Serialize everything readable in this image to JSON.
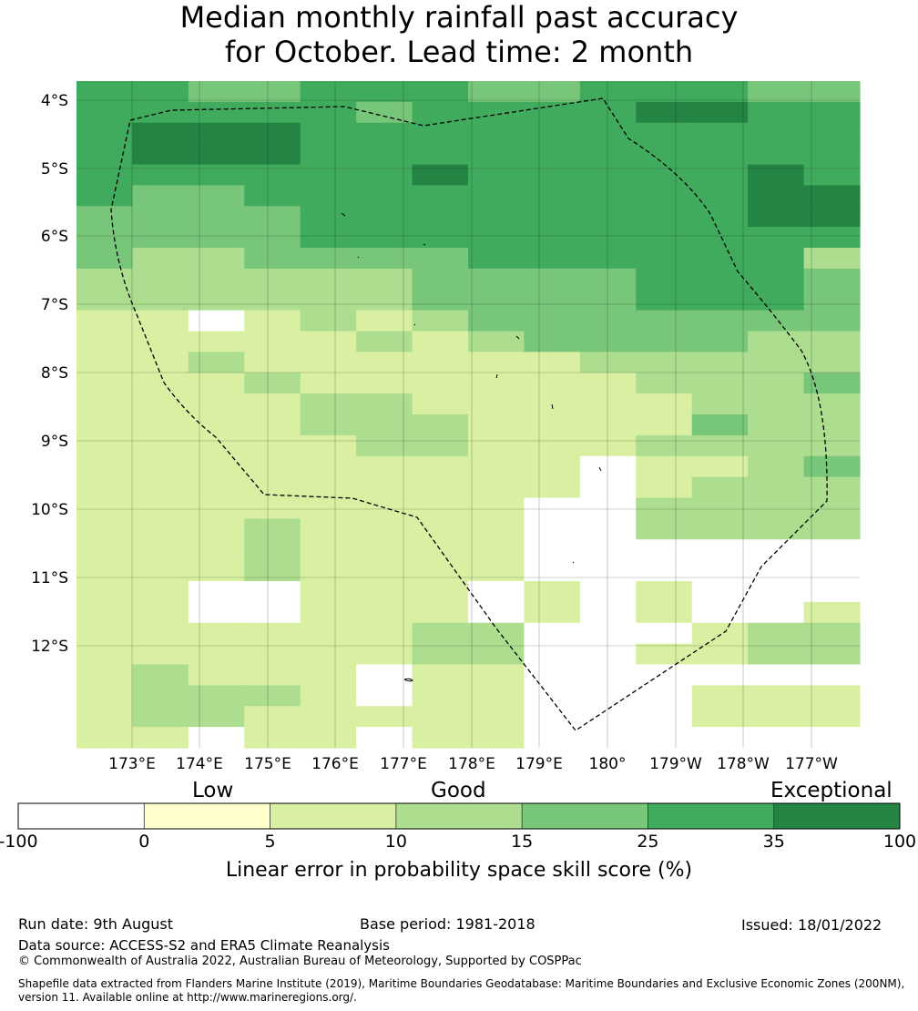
{
  "title": {
    "line1": "Median monthly rainfall past accuracy",
    "line2": "for October. Lead time: 2 month"
  },
  "map": {
    "lat_labels": [
      "4°S",
      "5°S",
      "6°S",
      "7°S",
      "8°S",
      "9°S",
      "10°S",
      "11°S",
      "12°S"
    ],
    "lon_labels": [
      "173°E",
      "174°E",
      "175°E",
      "176°E",
      "177°E",
      "178°E",
      "179°E",
      "180°",
      "179°W",
      "178°W",
      "177°W"
    ],
    "eez_boundary": "dashed black line (Tuvalu EEZ)",
    "grid_values": [
      [
        25,
        25,
        15,
        15,
        25,
        25,
        25,
        15,
        15,
        25,
        25,
        25,
        15,
        15
      ],
      [
        25,
        25,
        25,
        25,
        25,
        15,
        25,
        25,
        25,
        25,
        35,
        35,
        25,
        25
      ],
      [
        25,
        35,
        35,
        35,
        25,
        25,
        25,
        25,
        25,
        25,
        25,
        25,
        25,
        25
      ],
      [
        25,
        35,
        35,
        35,
        25,
        25,
        25,
        25,
        25,
        25,
        25,
        25,
        25,
        25
      ],
      [
        25,
        25,
        25,
        25,
        25,
        25,
        35,
        25,
        25,
        25,
        25,
        25,
        35,
        25
      ],
      [
        25,
        15,
        15,
        25,
        25,
        25,
        25,
        25,
        25,
        25,
        25,
        25,
        35,
        35
      ],
      [
        15,
        15,
        15,
        15,
        25,
        25,
        25,
        25,
        25,
        25,
        25,
        25,
        35,
        35
      ],
      [
        15,
        15,
        15,
        15,
        25,
        25,
        25,
        25,
        25,
        25,
        25,
        25,
        25,
        25
      ],
      [
        15,
        10,
        10,
        15,
        15,
        15,
        15,
        25,
        25,
        25,
        25,
        25,
        25,
        10
      ],
      [
        10,
        10,
        10,
        10,
        10,
        10,
        15,
        15,
        15,
        15,
        25,
        25,
        25,
        15
      ],
      [
        10,
        10,
        10,
        10,
        10,
        10,
        15,
        15,
        15,
        15,
        25,
        25,
        25,
        15
      ],
      [
        5,
        5,
        -1,
        5,
        10,
        5,
        10,
        15,
        15,
        15,
        15,
        15,
        15,
        15
      ],
      [
        5,
        5,
        5,
        5,
        5,
        10,
        5,
        10,
        15,
        15,
        15,
        15,
        10,
        10
      ],
      [
        5,
        5,
        10,
        5,
        5,
        5,
        5,
        5,
        5,
        10,
        10,
        10,
        10,
        10
      ],
      [
        5,
        5,
        5,
        10,
        5,
        5,
        5,
        5,
        5,
        5,
        10,
        10,
        10,
        15
      ],
      [
        5,
        5,
        5,
        5,
        10,
        10,
        5,
        5,
        5,
        5,
        5,
        10,
        10,
        10
      ],
      [
        5,
        5,
        5,
        5,
        10,
        10,
        10,
        5,
        5,
        5,
        5,
        15,
        10,
        10
      ],
      [
        5,
        5,
        5,
        5,
        5,
        10,
        10,
        5,
        5,
        5,
        10,
        10,
        10,
        10
      ],
      [
        5,
        5,
        5,
        5,
        5,
        5,
        5,
        5,
        5,
        -1,
        5,
        5,
        10,
        15
      ],
      [
        5,
        5,
        5,
        5,
        5,
        5,
        5,
        5,
        5,
        -1,
        5,
        10,
        10,
        10
      ],
      [
        5,
        5,
        5,
        5,
        5,
        5,
        5,
        5,
        -1,
        -1,
        10,
        10,
        10,
        10
      ],
      [
        5,
        5,
        5,
        10,
        5,
        5,
        5,
        5,
        -1,
        -1,
        10,
        10,
        10,
        10
      ],
      [
        5,
        5,
        5,
        10,
        5,
        5,
        5,
        5,
        -1,
        -1,
        -1,
        -1,
        -1,
        -1
      ],
      [
        5,
        5,
        5,
        10,
        5,
        5,
        5,
        5,
        -1,
        -1,
        -1,
        -1,
        -1,
        -1
      ],
      [
        5,
        5,
        -1,
        -1,
        5,
        5,
        5,
        -1,
        5,
        -1,
        5,
        -1,
        -1,
        -1
      ],
      [
        5,
        5,
        -1,
        -1,
        5,
        5,
        5,
        -1,
        5,
        -1,
        5,
        -1,
        -1,
        5
      ],
      [
        5,
        5,
        5,
        5,
        5,
        5,
        10,
        10,
        -1,
        -1,
        -1,
        5,
        10,
        10
      ],
      [
        5,
        5,
        5,
        5,
        5,
        5,
        10,
        10,
        -1,
        -1,
        5,
        5,
        10,
        10
      ],
      [
        5,
        10,
        5,
        5,
        5,
        -1,
        5,
        5,
        -1,
        -1,
        -1,
        -1,
        -1,
        -1
      ],
      [
        5,
        10,
        10,
        10,
        5,
        -1,
        5,
        5,
        -1,
        -1,
        -1,
        5,
        5,
        5
      ],
      [
        5,
        10,
        10,
        5,
        5,
        5,
        5,
        5,
        -1,
        -1,
        -1,
        5,
        5,
        5
      ],
      [
        5,
        5,
        -1,
        5,
        5,
        -1,
        5,
        5,
        -1,
        -1,
        -1,
        -1,
        -1,
        -1
      ]
    ]
  },
  "colorbar": {
    "category_low": "Low",
    "category_good": "Good",
    "category_exceptional": "Exceptional",
    "ticks": [
      "-100",
      "0",
      "5",
      "10",
      "15",
      "25",
      "35",
      "100"
    ],
    "colors": [
      "#ffffff",
      "#ffffcc",
      "#d9f0a3",
      "#addd8e",
      "#78c679",
      "#41ab5d",
      "#238443"
    ],
    "caption": "Linear error in probability space skill score (%)"
  },
  "footer": {
    "run_date": "Run date: 9th August",
    "base_period": "Base period: 1981-2018",
    "issued": "Issued: 18/01/2022",
    "data_source": "Data source: ACCESS-S2 and ERA5 Climate Reanalysis",
    "copyright": "© Commonwealth of Australia 2022, Australian Bureau of Meteorology, Supported by COSPPac",
    "shapefile_line1": "Shapefile data extracted from Flanders Marine Institute (2019), Maritime Boundaries Geodatabase: Maritime Boundaries and Exclusive Economic Zones (200NM),",
    "shapefile_line2": "version 11. Available online at http://www.marineregions.org/."
  }
}
